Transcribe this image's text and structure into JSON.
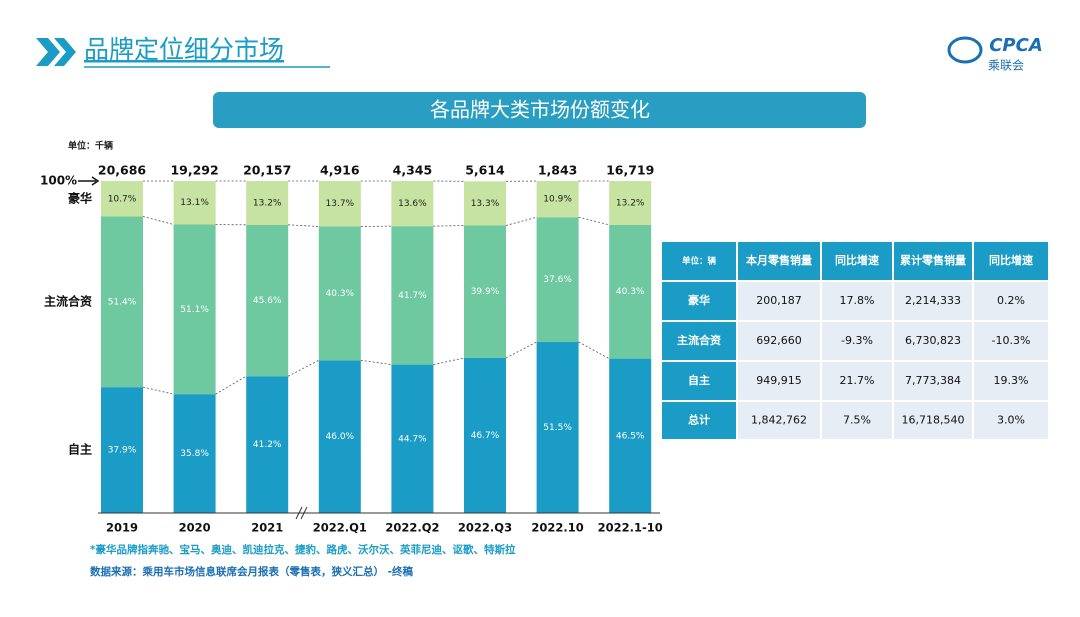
{
  "header": {
    "title": "品牌定位细分市场",
    "logo": "CPCA",
    "logo_sub": "乘联会"
  },
  "banner": "各品牌大类市场份额变化",
  "chart_data": {
    "type": "bar",
    "stacked": true,
    "unit": "单位：千辆",
    "categories": [
      "2019",
      "2020",
      "2021",
      "2022.Q1",
      "2022.Q2",
      "2022.Q3",
      "2022.10",
      "2022.1-10"
    ],
    "totals": {
      "values": [
        20686,
        19292,
        20157,
        4916,
        4345,
        5614,
        1843,
        16719
      ],
      "value_labels": [
        "20,686",
        "19,292",
        "20,157",
        "4,916",
        "4,345",
        "5,614",
        "1,843",
        "16,719"
      ]
    },
    "series": [
      {
        "name": "自主",
        "color": "#1b9cc6",
        "values": [
          37.9,
          35.8,
          41.2,
          46.0,
          44.7,
          46.7,
          51.5,
          46.5
        ],
        "value_labels": [
          "37.9%",
          "35.8%",
          "41.2%",
          "46.0%",
          "44.7%",
          "46.7%",
          "51.5%",
          "46.5%"
        ]
      },
      {
        "name": "主流合资",
        "color": "#6ec8a0",
        "values": [
          51.4,
          51.1,
          45.6,
          40.3,
          41.7,
          39.9,
          37.6,
          40.3
        ],
        "value_labels": [
          "51.4%",
          "51.1%",
          "45.6%",
          "40.3%",
          "41.7%",
          "39.9%",
          "37.6%",
          "40.3%"
        ]
      },
      {
        "name": "豪华",
        "color": "#c6e3a2",
        "values": [
          10.7,
          13.1,
          13.2,
          13.7,
          13.6,
          13.3,
          10.9,
          13.2
        ],
        "value_labels": [
          "10.7%",
          "13.1%",
          "13.2%",
          "13.7%",
          "13.6%",
          "13.3%",
          "10.9%",
          "13.2%"
        ]
      }
    ],
    "ylim": [
      0,
      100
    ],
    "yticks": [
      {
        "value": 100,
        "label": "100%"
      }
    ]
  },
  "table": {
    "header": [
      "单位：辆",
      "本月零售销量",
      "同比增速",
      "累计零售销量",
      "同比增速"
    ],
    "rows": [
      [
        "豪华",
        "200,187",
        "17.8%",
        "2,214,333",
        "0.2%"
      ],
      [
        "主流合资",
        "692,660",
        "-9.3%",
        "6,730,823",
        "-10.3%"
      ],
      [
        "自主",
        "949,915",
        "21.7%",
        "7,773,384",
        "19.3%"
      ],
      [
        "总计",
        "1,842,762",
        "7.5%",
        "16,718,540",
        "3.0%"
      ]
    ]
  },
  "footnotes": [
    "*豪华品牌指奔驰、宝马、奥迪、凯迪拉克、捷豹、路虎、沃尔沃、英菲尼迪、讴歌、特斯拉",
    "数据来源：乘用车市场信息联席会月报表（零售表，狭义汇总） -终稿"
  ]
}
